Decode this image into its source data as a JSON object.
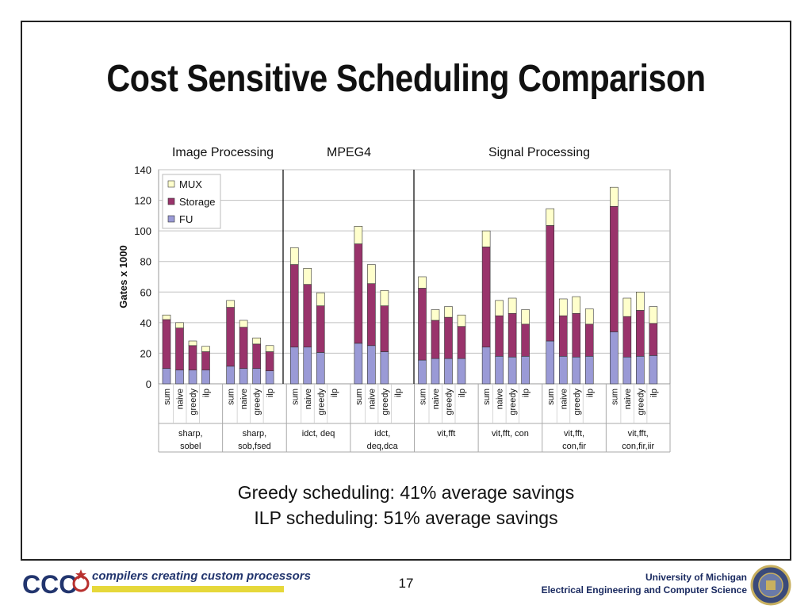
{
  "slide": {
    "title": "Cost Sensitive Scheduling Comparison",
    "notes": [
      "Greedy scheduling: 41% average savings",
      "ILP scheduling: 51% average savings"
    ],
    "page_number": "17",
    "tagline": "compilers creating custom processors",
    "logo_text": "CCC",
    "institution": [
      "University of Michigan",
      "Electrical Engineering and Computer Science"
    ]
  },
  "colors": {
    "fu": "#9a9ad6",
    "storage": "#99336b",
    "mux": "#ffffcc",
    "grid": "#c0c0c0",
    "divider": "#000000",
    "tagline": "#22356e",
    "bar_accent": "#e6d83a"
  },
  "chart_data": {
    "type": "bar",
    "stacked": true,
    "ylabel": "Gates x 1000",
    "xlabel": "",
    "ylim": [
      0,
      140
    ],
    "yticks": [
      0,
      20,
      40,
      60,
      80,
      100,
      120,
      140
    ],
    "grid": true,
    "legend_position": "top-left",
    "series_names": [
      "MUX",
      "Storage",
      "FU"
    ],
    "group_headers": [
      "Image Processing",
      "MPEG4",
      "Signal Processing"
    ],
    "groups": [
      {
        "label": [
          "sharp,",
          "sobel"
        ],
        "bars": [
          {
            "name": "sum",
            "fu": 10,
            "storage": 32,
            "mux": 3
          },
          {
            "name": "naive",
            "fu": 9,
            "storage": 27.5,
            "mux": 3.5
          },
          {
            "name": "greedy",
            "fu": 9,
            "storage": 16,
            "mux": 3
          },
          {
            "name": "ilp",
            "fu": 9,
            "storage": 12,
            "mux": 3.5
          }
        ]
      },
      {
        "label": [
          "sharp,",
          "sob,fsed"
        ],
        "bars": [
          {
            "name": "sum",
            "fu": 11.5,
            "storage": 38.5,
            "mux": 4.5
          },
          {
            "name": "naive",
            "fu": 10,
            "storage": 27,
            "mux": 4.5
          },
          {
            "name": "greedy",
            "fu": 10,
            "storage": 16,
            "mux": 4
          },
          {
            "name": "ilp",
            "fu": 8.5,
            "storage": 12.5,
            "mux": 4
          }
        ]
      },
      {
        "label": [
          "idct, deq"
        ],
        "bars": [
          {
            "name": "sum",
            "fu": 24,
            "storage": 54,
            "mux": 11
          },
          {
            "name": "naive",
            "fu": 24,
            "storage": 41,
            "mux": 10.5
          },
          {
            "name": "greedy",
            "fu": 20.5,
            "storage": 30.5,
            "mux": 8.5
          },
          {
            "name": "ilp",
            "fu": 0,
            "storage": 0,
            "mux": 0
          }
        ]
      },
      {
        "label": [
          "idct,",
          "deq,dca"
        ],
        "bars": [
          {
            "name": "sum",
            "fu": 26.5,
            "storage": 65,
            "mux": 11.5
          },
          {
            "name": "naive",
            "fu": 25,
            "storage": 40.5,
            "mux": 12.5
          },
          {
            "name": "greedy",
            "fu": 21,
            "storage": 30,
            "mux": 10
          },
          {
            "name": "ilp",
            "fu": 0,
            "storage": 0,
            "mux": 0
          }
        ]
      },
      {
        "label": [
          "vit,fft"
        ],
        "bars": [
          {
            "name": "sum",
            "fu": 15.5,
            "storage": 47,
            "mux": 7.5
          },
          {
            "name": "naive",
            "fu": 16.5,
            "storage": 25,
            "mux": 7
          },
          {
            "name": "greedy",
            "fu": 16.5,
            "storage": 27,
            "mux": 7
          },
          {
            "name": "ilp",
            "fu": 16.5,
            "storage": 21,
            "mux": 7.5
          }
        ]
      },
      {
        "label": [
          "vit,fft, con"
        ],
        "bars": [
          {
            "name": "sum",
            "fu": 24,
            "storage": 65.5,
            "mux": 10.5
          },
          {
            "name": "naive",
            "fu": 18,
            "storage": 26.5,
            "mux": 10
          },
          {
            "name": "greedy",
            "fu": 17.5,
            "storage": 28.5,
            "mux": 10
          },
          {
            "name": "ilp",
            "fu": 18,
            "storage": 21,
            "mux": 9.5
          }
        ]
      },
      {
        "label": [
          "vit,fft,",
          "con,fir"
        ],
        "bars": [
          {
            "name": "sum",
            "fu": 28,
            "storage": 75.5,
            "mux": 11
          },
          {
            "name": "naive",
            "fu": 18,
            "storage": 26.5,
            "mux": 11
          },
          {
            "name": "greedy",
            "fu": 17.5,
            "storage": 28.5,
            "mux": 11
          },
          {
            "name": "ilp",
            "fu": 18,
            "storage": 21,
            "mux": 10
          }
        ]
      },
      {
        "label": [
          "vit,fft,",
          "con,fir,iir"
        ],
        "bars": [
          {
            "name": "sum",
            "fu": 34,
            "storage": 82,
            "mux": 12.5
          },
          {
            "name": "naive",
            "fu": 17.5,
            "storage": 26.5,
            "mux": 12
          },
          {
            "name": "greedy",
            "fu": 18,
            "storage": 30,
            "mux": 12
          },
          {
            "name": "ilp",
            "fu": 18.5,
            "storage": 21,
            "mux": 11
          }
        ]
      }
    ]
  }
}
